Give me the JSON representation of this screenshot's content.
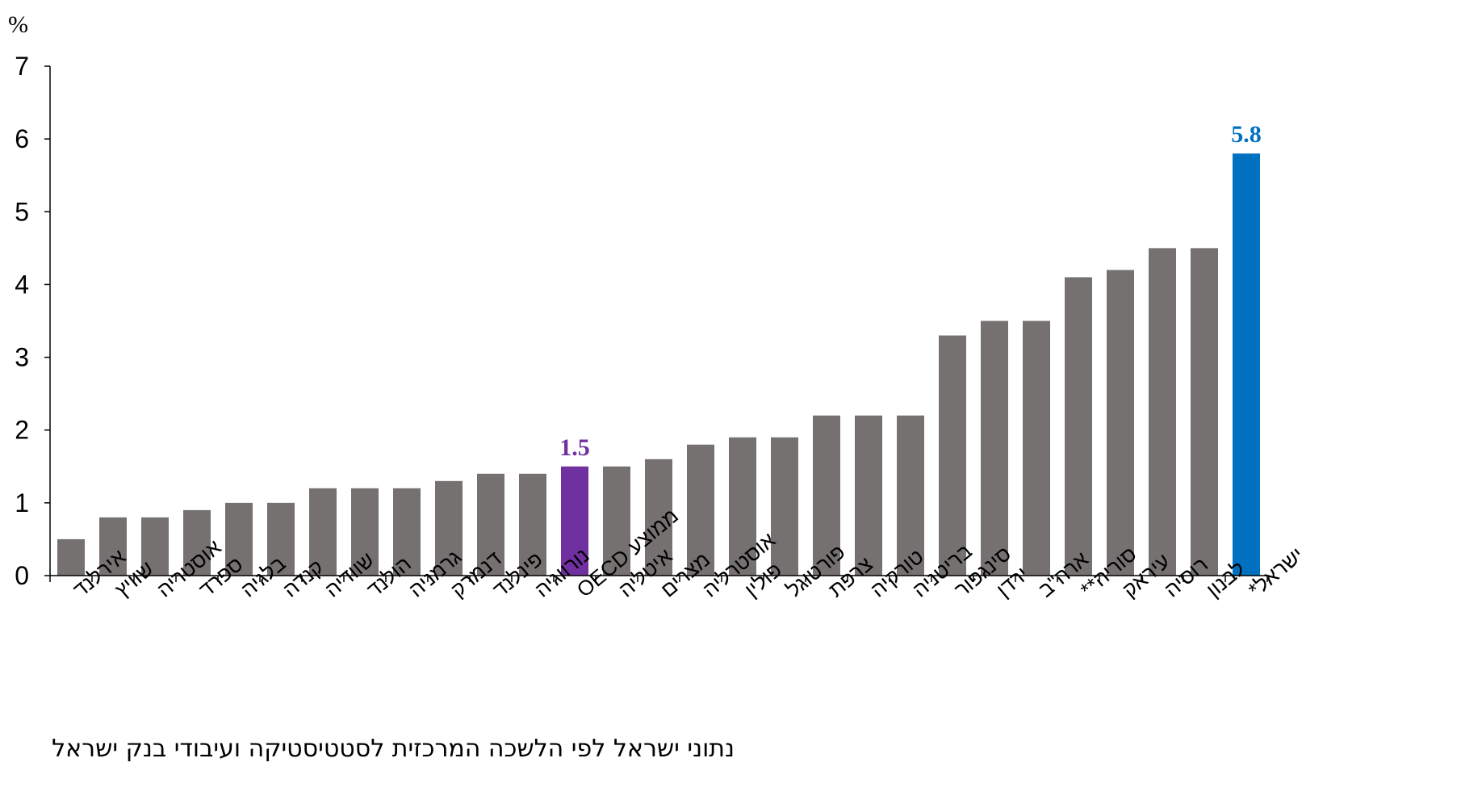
{
  "chart_data": {
    "type": "bar",
    "ylabel": "%",
    "ylim": [
      0,
      7
    ],
    "yticks": [
      0,
      1,
      2,
      3,
      4,
      5,
      6,
      7
    ],
    "grid": false,
    "legend": "none",
    "categories": [
      "אירלנד",
      "שוויץ",
      "אוסטריה",
      "ספרד",
      "בלגיה",
      "קנדה",
      "שוודיה",
      "הולנד",
      "גרמניה",
      "דנמרק",
      "פינלנד",
      "נורווגיה",
      "ממוצע OECD",
      "איטליה",
      "מצרים",
      "אוסטרליה",
      "פולין",
      "פורטוגל",
      "צרפת",
      "טורקיה",
      "בריטניה",
      "סינגפור",
      "ירדן",
      "ארה\"ב",
      "סוריה**",
      "עיראק",
      "רוסיה",
      "לבנון",
      "ישראל*"
    ],
    "values": [
      0.5,
      0.8,
      0.8,
      0.9,
      1.0,
      1.0,
      1.2,
      1.2,
      1.2,
      1.3,
      1.4,
      1.4,
      1.5,
      1.5,
      1.6,
      1.8,
      1.9,
      1.9,
      2.2,
      2.2,
      2.2,
      3.3,
      3.5,
      3.5,
      4.1,
      4.2,
      4.5,
      4.5,
      5.8
    ],
    "colors": {
      "default": "#767171",
      "oecd": "#7030A0",
      "israel": "#0070C0",
      "axis": "#000000"
    },
    "highlights": [
      {
        "category": "ממוצע OECD",
        "label": "1.5",
        "color": "#7030A0"
      },
      {
        "category": "ישראל*",
        "label": "5.8",
        "color": "#0070C0"
      }
    ]
  },
  "source_text": "נתוני ישראל לפי הלשכה המרכזית לסטטיסטיקה ועיבודי בנק ישראל"
}
